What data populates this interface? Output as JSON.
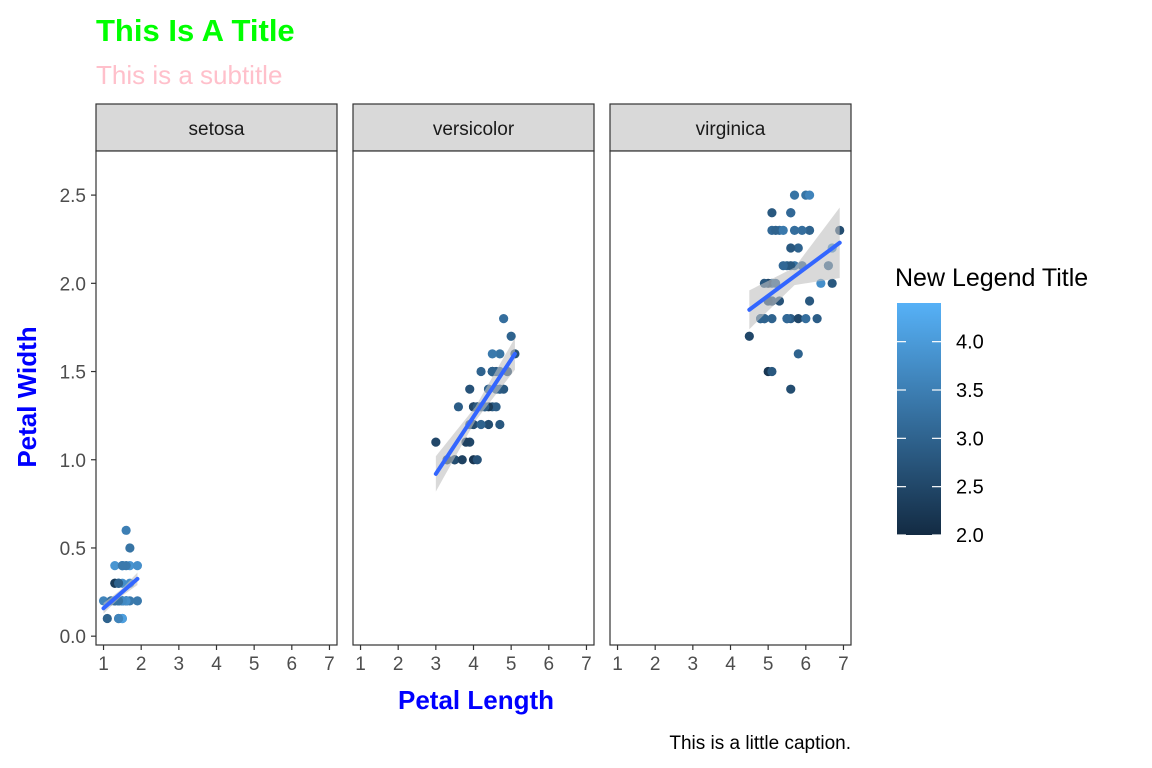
{
  "chart_data": {
    "type": "scatter",
    "title": "This Is A Title",
    "subtitle": "This is a subtitle",
    "caption": "This is a little caption.",
    "xlabel": "Petal Length",
    "ylabel": "Petal Width",
    "xlim": [
      0.8,
      7.2
    ],
    "ylim": [
      -0.05,
      2.75
    ],
    "x_ticks": [
      1,
      2,
      3,
      4,
      5,
      6,
      7
    ],
    "y_ticks": [
      0.0,
      0.5,
      1.0,
      1.5,
      2.0,
      2.5
    ],
    "y_tick_labels": [
      "0.0",
      "0.5",
      "1.0",
      "1.5",
      "2.0",
      "2.5"
    ],
    "grid": false,
    "legend": {
      "title": "New Legend Title",
      "placement": "right",
      "variable_range": [
        2.0,
        4.4
      ],
      "ticks": [
        2.0,
        2.5,
        3.0,
        3.5,
        4.0
      ],
      "tick_labels": [
        "2.0",
        "2.5",
        "3.0",
        "3.5",
        "4.0"
      ],
      "color_low": "#132b43",
      "color_high": "#56b1f7"
    },
    "colors": {
      "title": "#00ff00",
      "subtitle": "#ffc0cb",
      "axis_title": "#0000ff",
      "fit_line": "#3366ff",
      "confidence_band": "#bfbfbf",
      "strip_fill": "#d9d9d9"
    },
    "facets": [
      {
        "name": "setosa",
        "fit": {
          "x": [
            1.0,
            1.9
          ],
          "y": [
            0.158,
            0.325
          ],
          "se_halfwidth": [
            0.03,
            0.02,
            0.035
          ]
        },
        "points": [
          {
            "x": 1.4,
            "y": 0.2,
            "c": 3.5
          },
          {
            "x": 1.4,
            "y": 0.2,
            "c": 3.0
          },
          {
            "x": 1.3,
            "y": 0.2,
            "c": 3.2
          },
          {
            "x": 1.5,
            "y": 0.2,
            "c": 3.1
          },
          {
            "x": 1.4,
            "y": 0.2,
            "c": 3.6
          },
          {
            "x": 1.7,
            "y": 0.4,
            "c": 3.9
          },
          {
            "x": 1.4,
            "y": 0.3,
            "c": 3.4
          },
          {
            "x": 1.5,
            "y": 0.2,
            "c": 3.4
          },
          {
            "x": 1.4,
            "y": 0.2,
            "c": 2.9
          },
          {
            "x": 1.5,
            "y": 0.1,
            "c": 3.1
          },
          {
            "x": 1.5,
            "y": 0.2,
            "c": 3.7
          },
          {
            "x": 1.6,
            "y": 0.2,
            "c": 3.4
          },
          {
            "x": 1.4,
            "y": 0.1,
            "c": 3.0
          },
          {
            "x": 1.1,
            "y": 0.1,
            "c": 3.0
          },
          {
            "x": 1.2,
            "y": 0.2,
            "c": 4.0
          },
          {
            "x": 1.5,
            "y": 0.4,
            "c": 4.4
          },
          {
            "x": 1.3,
            "y": 0.4,
            "c": 3.9
          },
          {
            "x": 1.4,
            "y": 0.3,
            "c": 3.5
          },
          {
            "x": 1.7,
            "y": 0.3,
            "c": 3.8
          },
          {
            "x": 1.5,
            "y": 0.3,
            "c": 3.8
          },
          {
            "x": 1.7,
            "y": 0.2,
            "c": 3.4
          },
          {
            "x": 1.5,
            "y": 0.4,
            "c": 3.7
          },
          {
            "x": 1.0,
            "y": 0.2,
            "c": 3.6
          },
          {
            "x": 1.7,
            "y": 0.5,
            "c": 3.3
          },
          {
            "x": 1.9,
            "y": 0.2,
            "c": 3.4
          },
          {
            "x": 1.6,
            "y": 0.2,
            "c": 3.0
          },
          {
            "x": 1.6,
            "y": 0.4,
            "c": 3.4
          },
          {
            "x": 1.5,
            "y": 0.2,
            "c": 3.5
          },
          {
            "x": 1.4,
            "y": 0.2,
            "c": 3.4
          },
          {
            "x": 1.6,
            "y": 0.2,
            "c": 3.2
          },
          {
            "x": 1.6,
            "y": 0.2,
            "c": 3.1
          },
          {
            "x": 1.5,
            "y": 0.4,
            "c": 3.4
          },
          {
            "x": 1.5,
            "y": 0.1,
            "c": 4.1
          },
          {
            "x": 1.4,
            "y": 0.2,
            "c": 4.2
          },
          {
            "x": 1.5,
            "y": 0.2,
            "c": 3.1
          },
          {
            "x": 1.2,
            "y": 0.2,
            "c": 3.2
          },
          {
            "x": 1.3,
            "y": 0.2,
            "c": 3.5
          },
          {
            "x": 1.4,
            "y": 0.1,
            "c": 3.6
          },
          {
            "x": 1.3,
            "y": 0.2,
            "c": 3.0
          },
          {
            "x": 1.5,
            "y": 0.2,
            "c": 3.4
          },
          {
            "x": 1.3,
            "y": 0.3,
            "c": 3.5
          },
          {
            "x": 1.3,
            "y": 0.3,
            "c": 2.3
          },
          {
            "x": 1.3,
            "y": 0.2,
            "c": 3.2
          },
          {
            "x": 1.6,
            "y": 0.6,
            "c": 3.5
          },
          {
            "x": 1.9,
            "y": 0.4,
            "c": 3.8
          },
          {
            "x": 1.4,
            "y": 0.3,
            "c": 3.0
          },
          {
            "x": 1.6,
            "y": 0.2,
            "c": 3.8
          },
          {
            "x": 1.4,
            "y": 0.2,
            "c": 3.2
          },
          {
            "x": 1.5,
            "y": 0.2,
            "c": 3.7
          },
          {
            "x": 1.4,
            "y": 0.2,
            "c": 3.3
          }
        ]
      },
      {
        "name": "versicolor",
        "fit": {
          "x": [
            3.0,
            5.1
          ],
          "y": [
            0.92,
            1.6
          ],
          "se_halfwidth": [
            0.1,
            0.04,
            0.09
          ]
        },
        "points": [
          {
            "x": 4.7,
            "y": 1.4,
            "c": 3.2
          },
          {
            "x": 4.5,
            "y": 1.5,
            "c": 3.2
          },
          {
            "x": 4.9,
            "y": 1.5,
            "c": 3.1
          },
          {
            "x": 4.0,
            "y": 1.3,
            "c": 2.3
          },
          {
            "x": 4.6,
            "y": 1.5,
            "c": 2.8
          },
          {
            "x": 4.5,
            "y": 1.3,
            "c": 2.8
          },
          {
            "x": 4.7,
            "y": 1.6,
            "c": 3.3
          },
          {
            "x": 3.3,
            "y": 1.0,
            "c": 2.4
          },
          {
            "x": 4.6,
            "y": 1.3,
            "c": 2.9
          },
          {
            "x": 3.9,
            "y": 1.4,
            "c": 2.7
          },
          {
            "x": 3.5,
            "y": 1.0,
            "c": 2.0
          },
          {
            "x": 4.2,
            "y": 1.5,
            "c": 3.0
          },
          {
            "x": 4.0,
            "y": 1.0,
            "c": 2.2
          },
          {
            "x": 4.7,
            "y": 1.4,
            "c": 2.9
          },
          {
            "x": 3.6,
            "y": 1.3,
            "c": 2.9
          },
          {
            "x": 4.4,
            "y": 1.4,
            "c": 3.1
          },
          {
            "x": 4.5,
            "y": 1.5,
            "c": 3.0
          },
          {
            "x": 4.1,
            "y": 1.0,
            "c": 2.7
          },
          {
            "x": 4.5,
            "y": 1.5,
            "c": 2.2
          },
          {
            "x": 3.9,
            "y": 1.1,
            "c": 2.5
          },
          {
            "x": 4.8,
            "y": 1.8,
            "c": 3.2
          },
          {
            "x": 4.0,
            "y": 1.3,
            "c": 2.8
          },
          {
            "x": 4.9,
            "y": 1.5,
            "c": 2.5
          },
          {
            "x": 4.7,
            "y": 1.2,
            "c": 2.8
          },
          {
            "x": 4.3,
            "y": 1.3,
            "c": 2.9
          },
          {
            "x": 4.4,
            "y": 1.4,
            "c": 3.0
          },
          {
            "x": 4.8,
            "y": 1.4,
            "c": 2.8
          },
          {
            "x": 5.0,
            "y": 1.7,
            "c": 3.0
          },
          {
            "x": 4.5,
            "y": 1.5,
            "c": 2.9
          },
          {
            "x": 3.5,
            "y": 1.0,
            "c": 2.6
          },
          {
            "x": 3.8,
            "y": 1.1,
            "c": 2.4
          },
          {
            "x": 3.7,
            "y": 1.0,
            "c": 2.4
          },
          {
            "x": 3.9,
            "y": 1.2,
            "c": 2.7
          },
          {
            "x": 5.1,
            "y": 1.6,
            "c": 2.7
          },
          {
            "x": 4.5,
            "y": 1.5,
            "c": 3.0
          },
          {
            "x": 4.5,
            "y": 1.6,
            "c": 3.4
          },
          {
            "x": 4.7,
            "y": 1.5,
            "c": 3.1
          },
          {
            "x": 4.4,
            "y": 1.3,
            "c": 2.3
          },
          {
            "x": 4.1,
            "y": 1.3,
            "c": 3.0
          },
          {
            "x": 4.0,
            "y": 1.3,
            "c": 2.5
          },
          {
            "x": 4.4,
            "y": 1.2,
            "c": 2.6
          },
          {
            "x": 4.6,
            "y": 1.4,
            "c": 3.0
          },
          {
            "x": 4.0,
            "y": 1.2,
            "c": 2.6
          },
          {
            "x": 3.3,
            "y": 1.0,
            "c": 2.3
          },
          {
            "x": 4.2,
            "y": 1.3,
            "c": 2.7
          },
          {
            "x": 4.2,
            "y": 1.2,
            "c": 3.0
          },
          {
            "x": 4.2,
            "y": 1.3,
            "c": 2.9
          },
          {
            "x": 4.3,
            "y": 1.3,
            "c": 2.9
          },
          {
            "x": 3.0,
            "y": 1.1,
            "c": 2.5
          },
          {
            "x": 4.1,
            "y": 1.3,
            "c": 2.8
          }
        ]
      },
      {
        "name": "virginica",
        "fit": {
          "x": [
            4.5,
            6.9
          ],
          "y": [
            1.85,
            2.23
          ],
          "se_halfwidth": [
            0.11,
            0.05,
            0.2
          ]
        },
        "points": [
          {
            "x": 6.0,
            "y": 2.5,
            "c": 3.3
          },
          {
            "x": 5.1,
            "y": 1.9,
            "c": 2.7
          },
          {
            "x": 5.9,
            "y": 2.1,
            "c": 3.0
          },
          {
            "x": 5.6,
            "y": 1.8,
            "c": 2.9
          },
          {
            "x": 5.8,
            "y": 2.2,
            "c": 3.0
          },
          {
            "x": 6.6,
            "y": 2.1,
            "c": 3.0
          },
          {
            "x": 4.5,
            "y": 1.7,
            "c": 2.5
          },
          {
            "x": 6.3,
            "y": 1.8,
            "c": 2.9
          },
          {
            "x": 5.8,
            "y": 1.8,
            "c": 2.5
          },
          {
            "x": 6.1,
            "y": 2.5,
            "c": 3.6
          },
          {
            "x": 5.1,
            "y": 2.0,
            "c": 3.2
          },
          {
            "x": 5.3,
            "y": 1.9,
            "c": 2.7
          },
          {
            "x": 5.5,
            "y": 2.1,
            "c": 3.0
          },
          {
            "x": 5.0,
            "y": 2.0,
            "c": 2.5
          },
          {
            "x": 5.1,
            "y": 2.4,
            "c": 2.8
          },
          {
            "x": 5.3,
            "y": 2.3,
            "c": 3.2
          },
          {
            "x": 5.5,
            "y": 1.8,
            "c": 3.0
          },
          {
            "x": 6.7,
            "y": 2.2,
            "c": 3.8
          },
          {
            "x": 6.9,
            "y": 2.3,
            "c": 2.6
          },
          {
            "x": 5.0,
            "y": 1.5,
            "c": 2.2
          },
          {
            "x": 5.7,
            "y": 2.3,
            "c": 3.2
          },
          {
            "x": 4.9,
            "y": 2.0,
            "c": 2.8
          },
          {
            "x": 6.7,
            "y": 2.0,
            "c": 2.8
          },
          {
            "x": 4.9,
            "y": 1.8,
            "c": 2.7
          },
          {
            "x": 5.7,
            "y": 2.1,
            "c": 3.3
          },
          {
            "x": 6.0,
            "y": 1.8,
            "c": 3.2
          },
          {
            "x": 4.8,
            "y": 1.8,
            "c": 2.8
          },
          {
            "x": 4.9,
            "y": 1.8,
            "c": 3.0
          },
          {
            "x": 5.6,
            "y": 2.1,
            "c": 2.8
          },
          {
            "x": 5.8,
            "y": 1.6,
            "c": 3.0
          },
          {
            "x": 6.1,
            "y": 1.9,
            "c": 2.8
          },
          {
            "x": 6.4,
            "y": 2.0,
            "c": 3.8
          },
          {
            "x": 5.6,
            "y": 2.2,
            "c": 2.8
          },
          {
            "x": 5.1,
            "y": 1.5,
            "c": 2.8
          },
          {
            "x": 5.6,
            "y": 1.4,
            "c": 2.6
          },
          {
            "x": 6.1,
            "y": 2.3,
            "c": 3.0
          },
          {
            "x": 5.6,
            "y": 2.4,
            "c": 3.4
          },
          {
            "x": 5.5,
            "y": 1.8,
            "c": 3.1
          },
          {
            "x": 4.8,
            "y": 1.8,
            "c": 3.0
          },
          {
            "x": 5.4,
            "y": 2.1,
            "c": 3.1
          },
          {
            "x": 5.6,
            "y": 2.4,
            "c": 3.1
          },
          {
            "x": 5.1,
            "y": 2.3,
            "c": 3.1
          },
          {
            "x": 5.1,
            "y": 1.9,
            "c": 2.7
          },
          {
            "x": 5.9,
            "y": 2.3,
            "c": 3.2
          },
          {
            "x": 5.7,
            "y": 2.5,
            "c": 3.3
          },
          {
            "x": 5.2,
            "y": 2.3,
            "c": 3.0
          },
          {
            "x": 5.0,
            "y": 1.9,
            "c": 2.5
          },
          {
            "x": 5.2,
            "y": 2.0,
            "c": 3.0
          },
          {
            "x": 5.4,
            "y": 2.3,
            "c": 3.4
          },
          {
            "x": 5.1,
            "y": 1.8,
            "c": 3.0
          }
        ]
      }
    ]
  }
}
